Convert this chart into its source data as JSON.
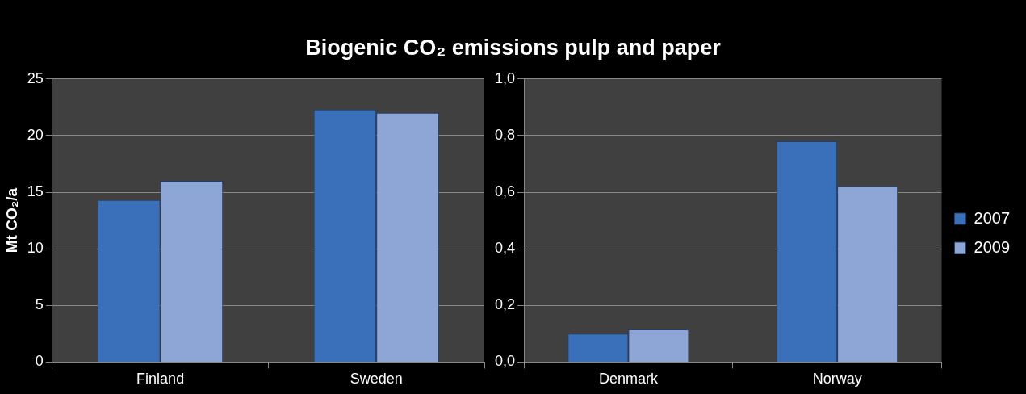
{
  "chart_data": [
    {
      "type": "bar",
      "title": "Biogenic CO₂ emissions pulp and paper",
      "ylabel": "Mt CO₂/a",
      "categories": [
        "Finland",
        "Sweden"
      ],
      "series": [
        {
          "color": "#3a6fba",
          "values": [
            14.3,
            22.3
          ]
        },
        {
          "color": "#8ea6d6",
          "values": [
            16.0,
            22.0
          ]
        }
      ],
      "ylim": [
        0,
        25
      ],
      "yticks": [
        0,
        5,
        10,
        15,
        20,
        25
      ],
      "grid": "y",
      "legend": false
    },
    {
      "type": "bar",
      "categories": [
        "Denmark",
        "Norway"
      ],
      "series": [
        {
          "name": "2007",
          "color": "#3a6fba",
          "values": [
            0.1,
            0.78
          ]
        },
        {
          "name": "2009",
          "color": "#8ea6d6",
          "values": [
            0.115,
            0.62
          ]
        }
      ],
      "ylim": [
        0,
        1
      ],
      "yticks": [
        {
          "value": 0,
          "label": "0,0"
        },
        {
          "value": 0.2,
          "label": "0,2"
        },
        {
          "value": 0.4,
          "label": "0,4"
        },
        {
          "value": 0.6,
          "label": "0,6"
        },
        {
          "value": 0.8,
          "label": "0,8"
        },
        {
          "value": 1,
          "label": "1,0"
        }
      ],
      "grid": "y",
      "legend": "right"
    }
  ]
}
